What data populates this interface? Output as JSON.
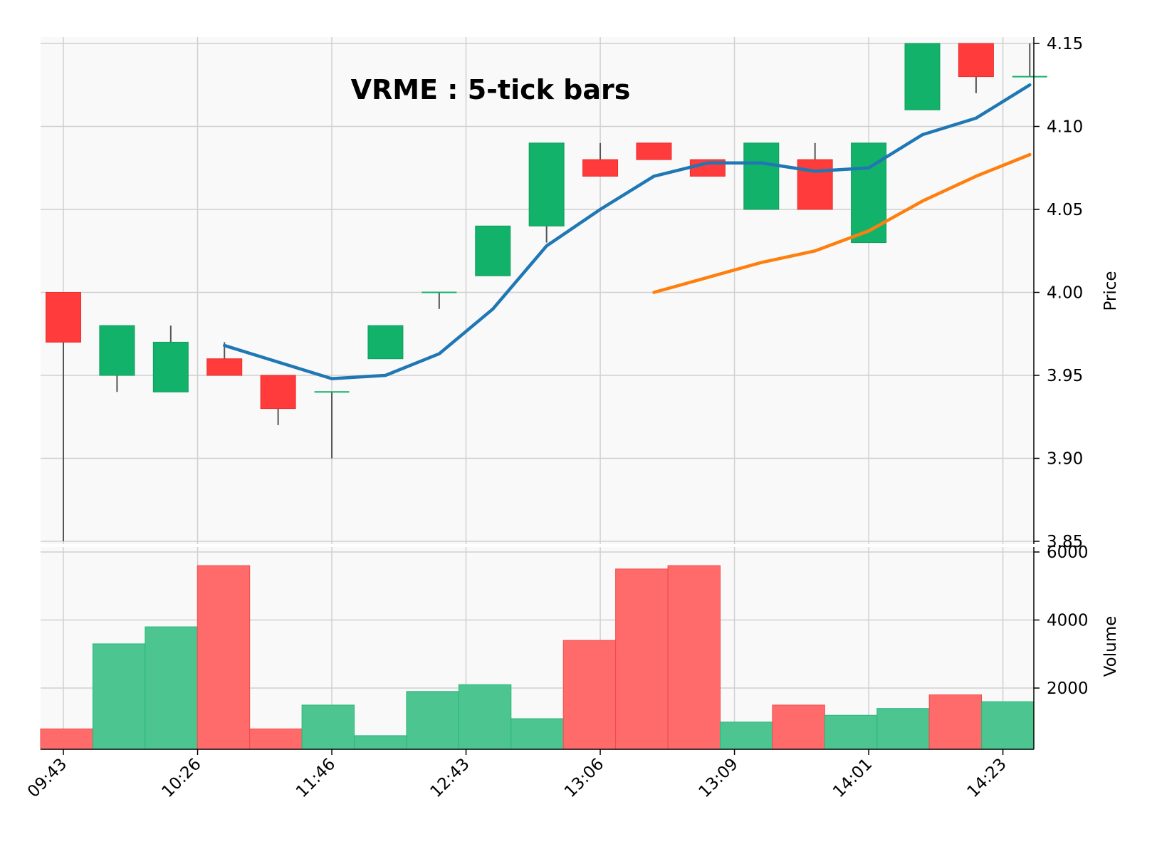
{
  "chart_data": {
    "type": "candlestick",
    "title": "VRME : 5-tick bars",
    "colors": {
      "up": "#13b26b",
      "down": "#ff3b3b",
      "volume_up": "#4cc591",
      "volume_down": "#ff6b6b",
      "wick": "#555555",
      "ma_short": "#1f77b4",
      "ma_long": "#ff7f0e",
      "panel_bg": "#f9f9f9",
      "grid": "#d0d0d0"
    },
    "x_tick_labels": [
      {
        "index": 0,
        "label": "09:43"
      },
      {
        "index": 2.5,
        "label": "10:26"
      },
      {
        "index": 5,
        "label": "11:46"
      },
      {
        "index": 7.5,
        "label": "12:43"
      },
      {
        "index": 10,
        "label": "13:06"
      },
      {
        "index": 12.5,
        "label": "13:09"
      },
      {
        "index": 15,
        "label": "14:01"
      },
      {
        "index": 17.5,
        "label": "14:23"
      }
    ],
    "price": {
      "ylabel": "Price",
      "ylim": [
        3.85,
        4.15
      ],
      "yticks": [
        "3.85",
        "3.90",
        "3.95",
        "4.00",
        "4.05",
        "4.10",
        "4.15"
      ],
      "candles": [
        {
          "open": 4.0,
          "high": 4.0,
          "low": 3.85,
          "close": 3.97
        },
        {
          "open": 3.95,
          "high": 3.98,
          "low": 3.94,
          "close": 3.98
        },
        {
          "open": 3.94,
          "high": 3.98,
          "low": 3.94,
          "close": 3.97
        },
        {
          "open": 3.96,
          "high": 3.97,
          "low": 3.95,
          "close": 3.95
        },
        {
          "open": 3.95,
          "high": 3.95,
          "low": 3.92,
          "close": 3.93
        },
        {
          "open": 3.94,
          "high": 3.94,
          "low": 3.9,
          "close": 3.94
        },
        {
          "open": 3.96,
          "high": 3.98,
          "low": 3.96,
          "close": 3.98
        },
        {
          "open": 4.0,
          "high": 4.0,
          "low": 3.99,
          "close": 4.0
        },
        {
          "open": 4.01,
          "high": 4.04,
          "low": 4.01,
          "close": 4.04
        },
        {
          "open": 4.04,
          "high": 4.09,
          "low": 4.03,
          "close": 4.09
        },
        {
          "open": 4.08,
          "high": 4.09,
          "low": 4.07,
          "close": 4.07
        },
        {
          "open": 4.09,
          "high": 4.09,
          "low": 4.08,
          "close": 4.08
        },
        {
          "open": 4.08,
          "high": 4.08,
          "low": 4.07,
          "close": 4.07
        },
        {
          "open": 4.05,
          "high": 4.09,
          "low": 4.05,
          "close": 4.09
        },
        {
          "open": 4.08,
          "high": 4.09,
          "low": 4.05,
          "close": 4.05
        },
        {
          "open": 4.03,
          "high": 4.09,
          "low": 4.03,
          "close": 4.09
        },
        {
          "open": 4.11,
          "high": 4.15,
          "low": 4.11,
          "close": 4.15
        },
        {
          "open": 4.15,
          "high": 4.15,
          "low": 4.12,
          "close": 4.13
        },
        {
          "open": 4.13,
          "high": 4.15,
          "low": 4.13,
          "close": 4.13
        }
      ],
      "ma_short": [
        null,
        null,
        null,
        3.968,
        3.958,
        3.948,
        3.95,
        3.963,
        3.99,
        4.028,
        4.05,
        4.07,
        4.078,
        4.078,
        4.073,
        4.075,
        4.095,
        4.105,
        4.125
      ],
      "ma_long": [
        null,
        null,
        null,
        null,
        null,
        null,
        null,
        null,
        null,
        null,
        null,
        4.0,
        4.009,
        4.018,
        4.025,
        4.037,
        4.055,
        4.07,
        4.083
      ]
    },
    "volume": {
      "ylabel": "Volume",
      "ylim": [
        200,
        6000
      ],
      "yticks": [
        "2000",
        "4000",
        "6000"
      ],
      "values": [
        800,
        3300,
        3800,
        5600,
        800,
        1500,
        600,
        1900,
        2100,
        1100,
        3400,
        5500,
        5600,
        1000,
        1500,
        1200,
        1400,
        1800,
        1600
      ]
    }
  }
}
